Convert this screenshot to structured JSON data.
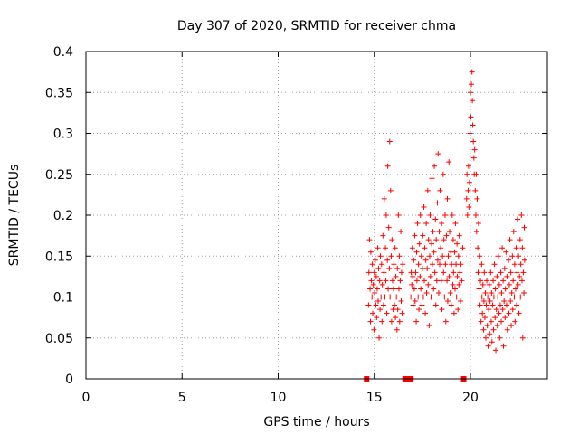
{
  "chart_data": {
    "type": "scatter",
    "title": "Day 307 of 2020, SRMTID for receiver chma",
    "xlabel": "GPS time / hours",
    "ylabel": "SRMTID / TECUs",
    "xlim": [
      0,
      24
    ],
    "ylim": [
      0,
      0.4
    ],
    "xticks": [
      0,
      5,
      10,
      15,
      20
    ],
    "xtick_labels": [
      "0",
      "5",
      "10",
      "15",
      "20"
    ],
    "yticks": [
      0,
      0.05,
      0.1,
      0.15,
      0.2,
      0.25,
      0.3,
      0.35,
      0.4
    ],
    "ytick_labels": [
      "0",
      "0.05",
      "0.1",
      "0.15",
      "0.2",
      "0.25",
      "0.3",
      "0.35",
      "0.4"
    ],
    "grid": true,
    "marker": "plus",
    "color": "#ff0000",
    "zero_markers_x": [
      14.6,
      16.6,
      16.7,
      16.8,
      16.9,
      19.65
    ],
    "series": [
      {
        "name": "SRMTID",
        "points": [
          [
            14.7,
            0.09
          ],
          [
            14.72,
            0.13
          ],
          [
            14.75,
            0.17
          ],
          [
            14.78,
            0.11
          ],
          [
            14.8,
            0.07
          ],
          [
            14.82,
            0.155
          ],
          [
            14.85,
            0.12
          ],
          [
            14.88,
            0.1
          ],
          [
            14.9,
            0.14
          ],
          [
            14.92,
            0.08
          ],
          [
            14.95,
            0.115
          ],
          [
            14.98,
            0.06
          ],
          [
            15.0,
            0.13
          ],
          [
            15.02,
            0.105
          ],
          [
            15.05,
            0.145
          ],
          [
            15.08,
            0.09
          ],
          [
            15.1,
            0.125
          ],
          [
            15.12,
            0.075
          ],
          [
            15.15,
            0.11
          ],
          [
            15.18,
            0.16
          ],
          [
            15.2,
            0.095
          ],
          [
            15.22,
            0.135
          ],
          [
            15.25,
            0.05
          ],
          [
            15.28,
            0.12
          ],
          [
            15.3,
            0.085
          ],
          [
            15.32,
            0.15
          ],
          [
            15.35,
            0.1
          ],
          [
            15.38,
            0.14
          ],
          [
            15.4,
            0.07
          ],
          [
            15.42,
            0.115
          ],
          [
            15.45,
            0.175
          ],
          [
            15.48,
            0.09
          ],
          [
            15.5,
            0.13
          ],
          [
            15.52,
            0.22
          ],
          [
            15.55,
            0.1
          ],
          [
            15.58,
            0.16
          ],
          [
            15.6,
            0.12
          ],
          [
            15.62,
            0.2
          ],
          [
            15.65,
            0.08
          ],
          [
            15.68,
            0.145
          ],
          [
            15.7,
            0.26
          ],
          [
            15.72,
            0.11
          ],
          [
            15.75,
            0.185
          ],
          [
            15.78,
            0.135
          ],
          [
            15.8,
            0.29
          ],
          [
            15.82,
            0.1
          ],
          [
            15.85,
            0.23
          ],
          [
            15.88,
            0.15
          ],
          [
            15.9,
            0.07
          ],
          [
            15.92,
            0.17
          ],
          [
            15.95,
            0.12
          ],
          [
            15.98,
            0.085
          ],
          [
            16.0,
            0.11
          ],
          [
            16.02,
            0.14
          ],
          [
            16.05,
            0.09
          ],
          [
            16.08,
            0.16
          ],
          [
            16.1,
            0.075
          ],
          [
            16.12,
            0.125
          ],
          [
            16.15,
            0.1
          ],
          [
            16.18,
            0.06
          ],
          [
            16.2,
            0.135
          ],
          [
            16.22,
            0.085
          ],
          [
            16.25,
            0.2
          ],
          [
            16.28,
            0.11
          ],
          [
            16.3,
            0.15
          ],
          [
            16.32,
            0.07
          ],
          [
            16.35,
            0.12
          ],
          [
            16.38,
            0.18
          ],
          [
            16.4,
            0.095
          ],
          [
            16.42,
            0.13
          ],
          [
            16.45,
            0.08
          ],
          [
            16.48,
            0.14
          ],
          [
            16.9,
            0.1
          ],
          [
            16.92,
            0.13
          ],
          [
            16.95,
            0.115
          ],
          [
            16.98,
            0.16
          ],
          [
            17.0,
            0.125
          ],
          [
            17.02,
            0.09
          ],
          [
            17.05,
            0.145
          ],
          [
            17.08,
            0.11
          ],
          [
            17.1,
            0.175
          ],
          [
            17.12,
            0.095
          ],
          [
            17.15,
            0.13
          ],
          [
            17.18,
            0.07
          ],
          [
            17.2,
            0.155
          ],
          [
            17.22,
            0.12
          ],
          [
            17.25,
            0.19
          ],
          [
            17.28,
            0.1
          ],
          [
            17.3,
            0.14
          ],
          [
            17.32,
            0.085
          ],
          [
            17.35,
            0.165
          ],
          [
            17.38,
            0.125
          ],
          [
            17.4,
            0.2
          ],
          [
            17.42,
            0.11
          ],
          [
            17.45,
            0.15
          ],
          [
            17.48,
            0.09
          ],
          [
            17.5,
            0.135
          ],
          [
            17.52,
            0.175
          ],
          [
            17.55,
            0.1
          ],
          [
            17.58,
            0.21
          ],
          [
            17.6,
            0.12
          ],
          [
            17.62,
            0.16
          ],
          [
            17.65,
            0.08
          ],
          [
            17.68,
            0.145
          ],
          [
            17.7,
            0.19
          ],
          [
            17.72,
            0.105
          ],
          [
            17.75,
            0.135
          ],
          [
            17.78,
            0.23
          ],
          [
            17.8,
            0.115
          ],
          [
            17.82,
            0.17
          ],
          [
            17.85,
            0.065
          ],
          [
            17.88,
            0.15
          ],
          [
            17.9,
            0.2
          ],
          [
            17.92,
            0.125
          ],
          [
            17.95,
            0.1
          ],
          [
            17.98,
            0.165
          ],
          [
            18.0,
            0.245
          ],
          [
            18.02,
            0.14
          ],
          [
            18.05,
            0.18
          ],
          [
            18.08,
            0.11
          ],
          [
            18.1,
            0.155
          ],
          [
            18.12,
            0.26
          ],
          [
            18.15,
            0.13
          ],
          [
            18.18,
            0.195
          ],
          [
            18.2,
            0.09
          ],
          [
            18.22,
            0.17
          ],
          [
            18.25,
            0.12
          ],
          [
            18.28,
            0.215
          ],
          [
            18.3,
            0.145
          ],
          [
            18.32,
            0.275
          ],
          [
            18.35,
            0.105
          ],
          [
            18.38,
            0.18
          ],
          [
            18.4,
            0.14
          ],
          [
            18.42,
            0.23
          ],
          [
            18.45,
            0.16
          ],
          [
            18.48,
            0.12
          ],
          [
            18.5,
            0.19
          ],
          [
            18.52,
            0.085
          ],
          [
            18.55,
            0.15
          ],
          [
            18.58,
            0.25
          ],
          [
            18.6,
            0.13
          ],
          [
            18.62,
            0.17
          ],
          [
            18.65,
            0.1
          ],
          [
            18.68,
            0.2
          ],
          [
            18.7,
            0.14
          ],
          [
            18.72,
            0.07
          ],
          [
            18.75,
            0.175
          ],
          [
            18.78,
            0.12
          ],
          [
            18.8,
            0.22
          ],
          [
            18.82,
            0.095
          ],
          [
            18.85,
            0.15
          ],
          [
            18.88,
            0.265
          ],
          [
            18.9,
            0.125
          ],
          [
            18.92,
            0.18
          ],
          [
            18.95,
            0.105
          ],
          [
            18.98,
            0.155
          ],
          [
            19.0,
            0.09
          ],
          [
            19.02,
            0.14
          ],
          [
            19.05,
            0.2
          ],
          [
            19.08,
            0.115
          ],
          [
            19.1,
            0.17
          ],
          [
            19.12,
            0.13
          ],
          [
            19.15,
            0.08
          ],
          [
            19.18,
            0.155
          ],
          [
            19.2,
            0.11
          ],
          [
            19.22,
            0.19
          ],
          [
            19.25,
            0.14
          ],
          [
            19.28,
            0.1
          ],
          [
            19.3,
            0.165
          ],
          [
            19.32,
            0.125
          ],
          [
            19.35,
            0.085
          ],
          [
            19.38,
            0.15
          ],
          [
            19.4,
            0.115
          ],
          [
            19.42,
            0.175
          ],
          [
            19.45,
            0.13
          ],
          [
            19.48,
            0.095
          ],
          [
            19.5,
            0.14
          ],
          [
            19.55,
            0.12
          ],
          [
            19.6,
            0.16
          ],
          [
            19.8,
            0.22
          ],
          [
            19.82,
            0.25
          ],
          [
            19.85,
            0.2
          ],
          [
            19.88,
            0.23
          ],
          [
            19.9,
            0.26
          ],
          [
            19.92,
            0.21
          ],
          [
            19.95,
            0.24
          ],
          [
            19.98,
            0.3
          ],
          [
            20.0,
            0.35
          ],
          [
            20.02,
            0.32
          ],
          [
            20.05,
            0.36
          ],
          [
            20.08,
            0.375
          ],
          [
            20.1,
            0.34
          ],
          [
            20.12,
            0.31
          ],
          [
            20.15,
            0.29
          ],
          [
            20.18,
            0.27
          ],
          [
            20.2,
            0.25
          ],
          [
            20.22,
            0.28
          ],
          [
            20.25,
            0.23
          ],
          [
            20.28,
            0.2
          ],
          [
            20.3,
            0.25
          ],
          [
            20.32,
            0.18
          ],
          [
            20.35,
            0.22
          ],
          [
            20.38,
            0.16
          ],
          [
            20.4,
            0.13
          ],
          [
            20.42,
            0.19
          ],
          [
            20.45,
            0.11
          ],
          [
            20.48,
            0.15
          ],
          [
            20.5,
            0.09
          ],
          [
            20.52,
            0.12
          ],
          [
            20.55,
            0.07
          ],
          [
            20.58,
            0.14
          ],
          [
            20.6,
            0.1
          ],
          [
            20.62,
            0.08
          ],
          [
            20.65,
            0.115
          ],
          [
            20.68,
            0.06
          ],
          [
            20.7,
            0.095
          ],
          [
            20.72,
            0.13
          ],
          [
            20.75,
            0.075
          ],
          [
            20.78,
            0.105
          ],
          [
            20.8,
            0.05
          ],
          [
            20.82,
            0.09
          ],
          [
            20.85,
            0.12
          ],
          [
            20.88,
            0.065
          ],
          [
            20.9,
            0.1
          ],
          [
            20.92,
            0.04
          ],
          [
            20.95,
            0.085
          ],
          [
            20.98,
            0.115
          ],
          [
            21.0,
            0.055
          ],
          [
            21.02,
            0.095
          ],
          [
            21.05,
            0.13
          ],
          [
            21.08,
            0.07
          ],
          [
            21.1,
            0.105
          ],
          [
            21.12,
            0.045
          ],
          [
            21.15,
            0.09
          ],
          [
            21.18,
            0.12
          ],
          [
            21.2,
            0.06
          ],
          [
            21.22,
            0.1
          ],
          [
            21.25,
            0.14
          ],
          [
            21.28,
            0.075
          ],
          [
            21.3,
            0.11
          ],
          [
            21.32,
            0.035
          ],
          [
            21.35,
            0.085
          ],
          [
            21.38,
            0.125
          ],
          [
            21.4,
            0.065
          ],
          [
            21.42,
            0.1
          ],
          [
            21.45,
            0.15
          ],
          [
            21.48,
            0.08
          ],
          [
            21.5,
            0.115
          ],
          [
            21.52,
            0.05
          ],
          [
            21.55,
            0.09
          ],
          [
            21.58,
            0.13
          ],
          [
            21.6,
            0.07
          ],
          [
            21.62,
            0.105
          ],
          [
            21.65,
            0.16
          ],
          [
            21.68,
            0.085
          ],
          [
            21.7,
            0.12
          ],
          [
            21.72,
            0.04
          ],
          [
            21.75,
            0.095
          ],
          [
            21.78,
            0.135
          ],
          [
            21.8,
            0.075
          ],
          [
            21.82,
            0.11
          ],
          [
            21.85,
            0.155
          ],
          [
            21.88,
            0.09
          ],
          [
            21.9,
            0.125
          ],
          [
            21.92,
            0.06
          ],
          [
            21.95,
            0.1
          ],
          [
            21.98,
            0.145
          ],
          [
            22.0,
            0.08
          ],
          [
            22.02,
            0.115
          ],
          [
            22.05,
            0.17
          ],
          [
            22.08,
            0.095
          ],
          [
            22.1,
            0.13
          ],
          [
            22.12,
            0.065
          ],
          [
            22.15,
            0.105
          ],
          [
            22.18,
            0.15
          ],
          [
            22.2,
            0.085
          ],
          [
            22.22,
            0.12
          ],
          [
            22.25,
            0.18
          ],
          [
            22.28,
            0.1
          ],
          [
            22.3,
            0.14
          ],
          [
            22.32,
            0.07
          ],
          [
            22.35,
            0.11
          ],
          [
            22.38,
            0.16
          ],
          [
            22.4,
            0.09
          ],
          [
            22.42,
            0.13
          ],
          [
            22.45,
            0.195
          ],
          [
            22.48,
            0.115
          ],
          [
            22.5,
            0.15
          ],
          [
            22.52,
            0.08
          ],
          [
            22.55,
            0.125
          ],
          [
            22.58,
            0.17
          ],
          [
            22.6,
            0.1
          ],
          [
            22.62,
            0.14
          ],
          [
            22.65,
            0.2
          ],
          [
            22.68,
            0.12
          ],
          [
            22.7,
            0.16
          ],
          [
            22.72,
            0.05
          ],
          [
            22.75,
            0.13
          ],
          [
            22.78,
            0.105
          ],
          [
            22.8,
            0.185
          ],
          [
            22.82,
            0.145
          ]
        ]
      }
    ]
  }
}
